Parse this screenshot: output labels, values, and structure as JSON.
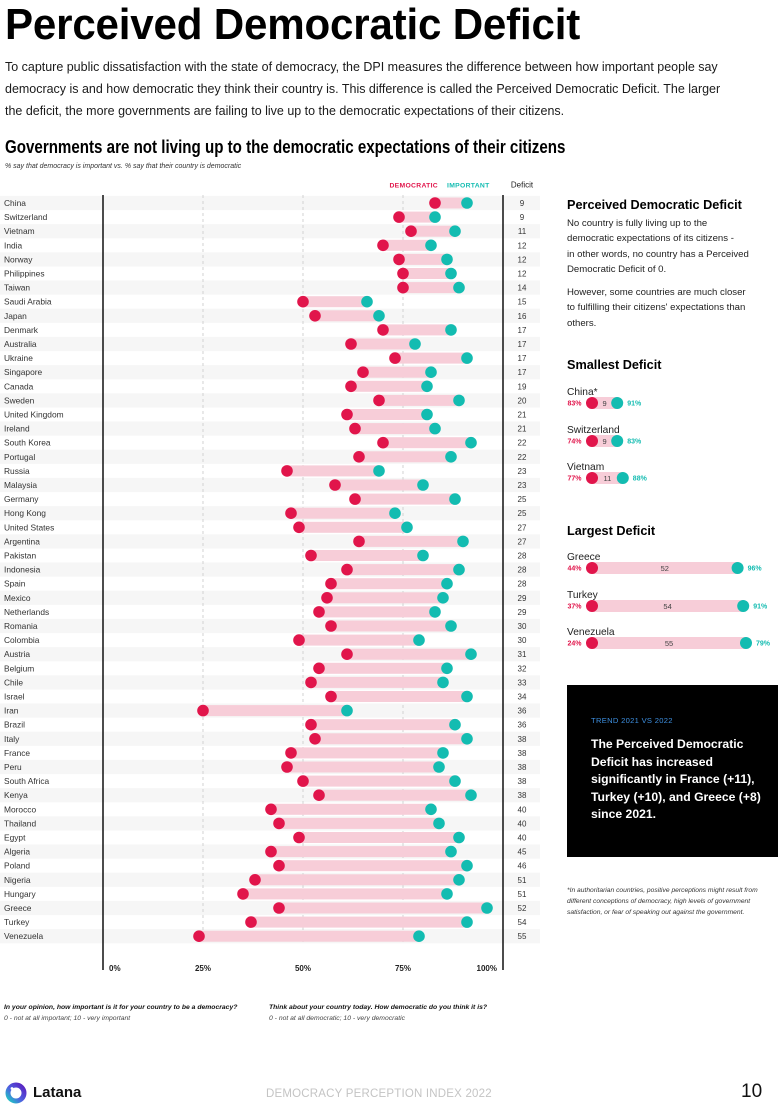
{
  "page": {
    "title": "Perceived Democratic Deficit",
    "intro_lines": [
      "To capture public dissatisfaction with the state of democracy, the DPI measures the difference between how important people say",
      "democracy is and how democratic they think their country is. This difference is called the Perceived Democratic Deficit. The larger",
      "the deficit, the more governments are failing to live up to the democratic expectations of their citizens."
    ]
  },
  "colors": {
    "democratic": "#e1154b",
    "important": "#13bcb1",
    "range_bar": "#f7cdd8",
    "row_band": "#f6f6f6",
    "trend_label": "#3d8fe0"
  },
  "questions": [
    {
      "question": "In your opinion, how important is it for your country to be a democracy?",
      "scale": "0 - not at all important; 10 - very important"
    },
    {
      "question": "Think about your country today. How democratic do you think it is?",
      "scale": "0 - not at all democratic; 10 - very democratic"
    }
  ],
  "sidebar": {
    "heading": "Perceived Democratic Deficit",
    "desc_lines": [
      "No country is fully living up to the",
      "democratic expectations of its citizens -",
      "in other words, no country has a Perceived",
      "Democratic Deficit of 0."
    ],
    "however_lines": [
      "However, some countries are much closer",
      "to fulfilling their citizens' expectations than",
      "others."
    ],
    "smallest": {
      "heading": "Smallest Deficit",
      "items": [
        {
          "country": "China*",
          "democratic": "83%",
          "important": "91%",
          "deficit": 9
        },
        {
          "country": "Switzerland",
          "democratic": "74%",
          "important": "83%",
          "deficit": 9
        },
        {
          "country": "Vietnam",
          "democratic": "77%",
          "important": "88%",
          "deficit": 11
        }
      ]
    },
    "largest": {
      "heading": "Largest Deficit",
      "items": [
        {
          "country": "Greece",
          "democratic": "44%",
          "important": "96%",
          "deficit": 52
        },
        {
          "country": "Turkey",
          "democratic": "37%",
          "important": "91%",
          "deficit": 54
        },
        {
          "country": "Venezuela",
          "democratic": "24%",
          "important": "79%",
          "deficit": 55
        }
      ]
    }
  },
  "trend": {
    "label": "TREND 2021 VS 2022",
    "lines": [
      "The Perceived Democratic",
      "Deficit has increased",
      "significantly in France (+11),",
      "Turkey (+10), and Greece (+8)",
      "since 2021."
    ]
  },
  "footnote_lines": [
    "*In authoritarian countries, positive perceptions might result from",
    "different conceptions of democracy, high levels of government",
    "satisfaction, or fear of speaking out against the government."
  ],
  "footer": {
    "brand": "Latana",
    "report": "DEMOCRACY PERCEPTION INDEX 2022",
    "page_number": "10"
  },
  "chart_data": {
    "type": "bar",
    "variant": "dumbbell",
    "title": "Governments are not living up to the democratic expectations of their citizens",
    "subtitle": "% say that democracy is important vs. % say that their country is democratic",
    "xlabel": "",
    "ylabel": "",
    "xlim": [
      0,
      100
    ],
    "x_ticks": [
      {
        "value": 0,
        "label": "0%"
      },
      {
        "value": 25,
        "label": "25%"
      },
      {
        "value": 50,
        "label": "50%"
      },
      {
        "value": 75,
        "label": "75%"
      },
      {
        "value": 100,
        "label": "100%"
      }
    ],
    "gridlines": [
      25,
      50,
      75
    ],
    "legend": [
      "DEMOCRATIC",
      "IMPORTANT"
    ],
    "legend_position": "top-right",
    "extra_column": "Deficit",
    "series": [
      {
        "name": "Democratic",
        "key": "democratic"
      },
      {
        "name": "Important",
        "key": "important"
      }
    ],
    "rows": [
      {
        "country": "China",
        "democratic": 83,
        "important": 91,
        "deficit": 9
      },
      {
        "country": "Switzerland",
        "democratic": 74,
        "important": 83,
        "deficit": 9
      },
      {
        "country": "Vietnam",
        "democratic": 77,
        "important": 88,
        "deficit": 11
      },
      {
        "country": "India",
        "democratic": 70,
        "important": 82,
        "deficit": 12
      },
      {
        "country": "Norway",
        "democratic": 74,
        "important": 86,
        "deficit": 12
      },
      {
        "country": "Philippines",
        "democratic": 75,
        "important": 87,
        "deficit": 12
      },
      {
        "country": "Taiwan",
        "democratic": 75,
        "important": 89,
        "deficit": 14
      },
      {
        "country": "Saudi Arabia",
        "democratic": 50,
        "important": 66,
        "deficit": 15
      },
      {
        "country": "Japan",
        "democratic": 53,
        "important": 69,
        "deficit": 16
      },
      {
        "country": "Denmark",
        "democratic": 70,
        "important": 87,
        "deficit": 17
      },
      {
        "country": "Australia",
        "democratic": 62,
        "important": 78,
        "deficit": 17
      },
      {
        "country": "Ukraine",
        "democratic": 73,
        "important": 91,
        "deficit": 17
      },
      {
        "country": "Singapore",
        "democratic": 65,
        "important": 82,
        "deficit": 17
      },
      {
        "country": "Canada",
        "democratic": 62,
        "important": 81,
        "deficit": 19
      },
      {
        "country": "Sweden",
        "democratic": 69,
        "important": 89,
        "deficit": 20
      },
      {
        "country": "United Kingdom",
        "democratic": 61,
        "important": 81,
        "deficit": 21
      },
      {
        "country": "Ireland",
        "democratic": 63,
        "important": 83,
        "deficit": 21
      },
      {
        "country": "South Korea",
        "democratic": 70,
        "important": 92,
        "deficit": 22
      },
      {
        "country": "Portugal",
        "democratic": 64,
        "important": 87,
        "deficit": 22
      },
      {
        "country": "Russia",
        "democratic": 46,
        "important": 69,
        "deficit": 23
      },
      {
        "country": "Malaysia",
        "democratic": 58,
        "important": 80,
        "deficit": 23
      },
      {
        "country": "Germany",
        "democratic": 63,
        "important": 88,
        "deficit": 25
      },
      {
        "country": "Hong Kong",
        "democratic": 47,
        "important": 73,
        "deficit": 25
      },
      {
        "country": "United States",
        "democratic": 49,
        "important": 76,
        "deficit": 27
      },
      {
        "country": "Argentina",
        "democratic": 64,
        "important": 90,
        "deficit": 27
      },
      {
        "country": "Pakistan",
        "democratic": 52,
        "important": 80,
        "deficit": 28
      },
      {
        "country": "Indonesia",
        "democratic": 61,
        "important": 89,
        "deficit": 28
      },
      {
        "country": "Spain",
        "democratic": 57,
        "important": 86,
        "deficit": 28
      },
      {
        "country": "Mexico",
        "democratic": 56,
        "important": 85,
        "deficit": 29
      },
      {
        "country": "Netherlands",
        "democratic": 54,
        "important": 83,
        "deficit": 29
      },
      {
        "country": "Romania",
        "democratic": 57,
        "important": 87,
        "deficit": 30
      },
      {
        "country": "Colombia",
        "democratic": 49,
        "important": 79,
        "deficit": 30
      },
      {
        "country": "Austria",
        "democratic": 61,
        "important": 92,
        "deficit": 31
      },
      {
        "country": "Belgium",
        "democratic": 54,
        "important": 86,
        "deficit": 32
      },
      {
        "country": "Chile",
        "democratic": 52,
        "important": 85,
        "deficit": 33
      },
      {
        "country": "Israel",
        "democratic": 57,
        "important": 91,
        "deficit": 34
      },
      {
        "country": "Iran",
        "democratic": 25,
        "important": 61,
        "deficit": 36
      },
      {
        "country": "Brazil",
        "democratic": 52,
        "important": 88,
        "deficit": 36
      },
      {
        "country": "Italy",
        "democratic": 53,
        "important": 91,
        "deficit": 38
      },
      {
        "country": "France",
        "democratic": 47,
        "important": 85,
        "deficit": 38
      },
      {
        "country": "Peru",
        "democratic": 46,
        "important": 84,
        "deficit": 38
      },
      {
        "country": "South Africa",
        "democratic": 50,
        "important": 88,
        "deficit": 38
      },
      {
        "country": "Kenya",
        "democratic": 54,
        "important": 92,
        "deficit": 38
      },
      {
        "country": "Morocco",
        "democratic": 42,
        "important": 82,
        "deficit": 40
      },
      {
        "country": "Thailand",
        "democratic": 44,
        "important": 84,
        "deficit": 40
      },
      {
        "country": "Egypt",
        "democratic": 49,
        "important": 89,
        "deficit": 40
      },
      {
        "country": "Algeria",
        "democratic": 42,
        "important": 87,
        "deficit": 45
      },
      {
        "country": "Poland",
        "democratic": 44,
        "important": 91,
        "deficit": 46
      },
      {
        "country": "Nigeria",
        "democratic": 38,
        "important": 89,
        "deficit": 51
      },
      {
        "country": "Hungary",
        "democratic": 35,
        "important": 86,
        "deficit": 51
      },
      {
        "country": "Greece",
        "democratic": 44,
        "important": 96,
        "deficit": 52
      },
      {
        "country": "Turkey",
        "democratic": 37,
        "important": 91,
        "deficit": 54
      },
      {
        "country": "Venezuela",
        "democratic": 24,
        "important": 79,
        "deficit": 55
      }
    ]
  }
}
